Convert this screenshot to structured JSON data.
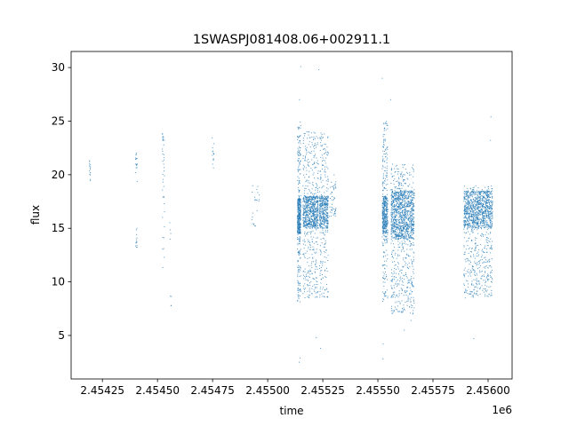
{
  "chart_data": {
    "type": "scatter",
    "title": "1SWASPJ081408.06+002911.1",
    "xlabel": "time",
    "ylabel": "flux",
    "x_offset_label": "1e6",
    "xlim": [
      2454108,
      2456109
    ],
    "ylim": [
      0.94,
      31.5
    ],
    "x_ticks": [
      2454250,
      2454500,
      2454750,
      2455000,
      2455250,
      2455500,
      2455750,
      2456000
    ],
    "x_tick_labels": [
      "2.45425",
      "2.45450",
      "2.45475",
      "2.45500",
      "2.45525",
      "2.45550",
      "2.45575",
      "2.45600"
    ],
    "y_ticks": [
      5,
      10,
      15,
      20,
      25,
      30
    ],
    "y_tick_labels": [
      "5",
      "10",
      "15",
      "20",
      "25",
      "30"
    ],
    "grid": false,
    "marker_color": "#1f77b4",
    "clusters": [
      {
        "time_range": [
          2454190,
          2454196
        ],
        "flux_core": [
          19.2,
          21.5
        ],
        "flux_spread": [
          19.2,
          21.5
        ],
        "n": 14
      },
      {
        "time_range": [
          2454400,
          2454408
        ],
        "flux_core": [
          19.3,
          22.5
        ],
        "flux_spread": [
          13.2,
          15.0
        ],
        "n": 30
      },
      {
        "time_range": [
          2454520,
          2454532
        ],
        "flux_core": [
          17.0,
          24.0
        ],
        "flux_spread": [
          6.5,
          28.0
        ],
        "n": 40
      },
      {
        "time_range": [
          2454555,
          2454565
        ],
        "flux_core": [
          13.8,
          16.0
        ],
        "flux_spread": [
          7.5,
          9.0
        ],
        "n": 8
      },
      {
        "time_range": [
          2454748,
          2454756
        ],
        "flux_core": [
          20.5,
          23.5
        ],
        "flux_spread": [
          20.5,
          23.5
        ],
        "n": 14
      },
      {
        "time_range": [
          2454928,
          2454962
        ],
        "flux_core": [
          15.0,
          19.0
        ],
        "flux_spread": [
          15.0,
          19.0
        ],
        "n": 22
      },
      {
        "time_range": [
          2455135,
          2455150
        ],
        "flux_core": [
          14.5,
          17.8
        ],
        "flux_spread": [
          8.0,
          25.0
        ],
        "n": 500
      },
      {
        "time_range": [
          2455160,
          2455230
        ],
        "flux_core": [
          15.0,
          18.0
        ],
        "flux_spread": [
          8.5,
          24.0
        ],
        "n": 900
      },
      {
        "time_range": [
          2455235,
          2455275
        ],
        "flux_core": [
          15.0,
          18.0
        ],
        "flux_spread": [
          8.5,
          24.0
        ],
        "n": 500
      },
      {
        "time_range": [
          2455280,
          2455310
        ],
        "flux_core": [
          16.0,
          19.0
        ],
        "flux_spread": [
          16.0,
          20.0
        ],
        "n": 50
      },
      {
        "time_range": [
          2455520,
          2455545
        ],
        "flux_core": [
          14.5,
          18.0
        ],
        "flux_spread": [
          8.0,
          25.0
        ],
        "n": 500
      },
      {
        "time_range": [
          2455560,
          2455665
        ],
        "flux_core": [
          14.0,
          18.5
        ],
        "flux_spread": [
          7.0,
          21.0
        ],
        "n": 1400
      },
      {
        "time_range": [
          2455890,
          2456020
        ],
        "flux_core": [
          15.0,
          18.5
        ],
        "flux_spread": [
          8.5,
          19.0
        ],
        "n": 1300
      }
    ],
    "outliers": [
      [
        2455143,
        2.5
      ],
      [
        2455147,
        2.9
      ],
      [
        2455144,
        27.0
      ],
      [
        2455150,
        30.1
      ],
      [
        2455232,
        29.8
      ],
      [
        2455220,
        4.8
      ],
      [
        2455240,
        3.8
      ],
      [
        2455520,
        29.0
      ],
      [
        2455523,
        2.8
      ],
      [
        2455524,
        4.2
      ],
      [
        2455558,
        27.0
      ],
      [
        2455620,
        5.5
      ],
      [
        2455650,
        6.4
      ],
      [
        2455935,
        4.7
      ],
      [
        2456013,
        25.4
      ],
      [
        2456011,
        23.2
      ]
    ]
  }
}
